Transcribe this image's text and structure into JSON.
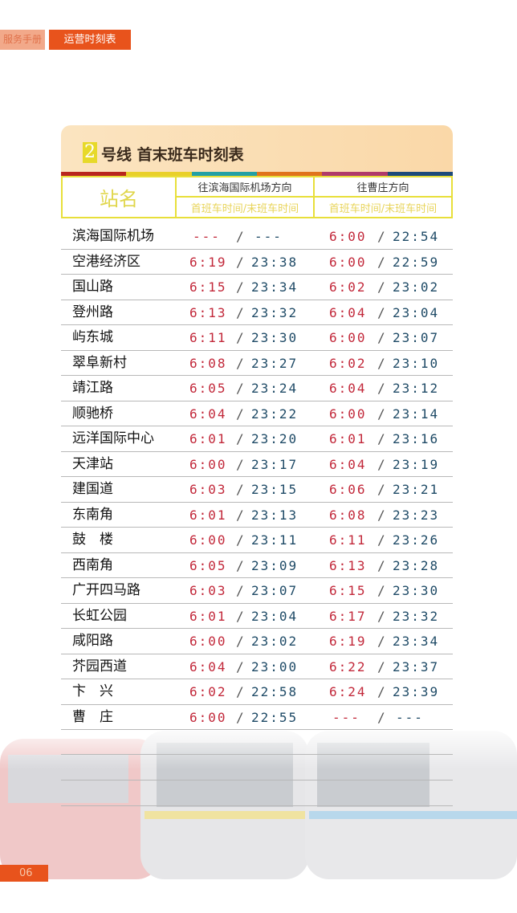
{
  "tabs": [
    "服务手册",
    "运营时刻表"
  ],
  "title": {
    "line_number": "2",
    "text": "号线  首末班车时刻表"
  },
  "stripe_colors": [
    "#b8261e",
    "#e9d02a",
    "#23a0a4",
    "#e0731c",
    "#b03a6a",
    "#1d4a7a"
  ],
  "header": {
    "station": "站名",
    "dir1": "往滨海国际机场方向",
    "dir2": "往曹庄方向",
    "sub": "首班车时间/末班车时间"
  },
  "rows": [
    {
      "name": "滨海国际机场",
      "a": "---",
      "b": "---",
      "c": "6:00",
      "d": "22:54"
    },
    {
      "name": "空港经济区",
      "a": "6:19",
      "b": "23:38",
      "c": "6:00",
      "d": "22:59"
    },
    {
      "name": "国山路",
      "a": "6:15",
      "b": "23:34",
      "c": "6:02",
      "d": "23:02"
    },
    {
      "name": "登州路",
      "a": "6:13",
      "b": "23:32",
      "c": "6:04",
      "d": "23:04"
    },
    {
      "name": "屿东城",
      "a": "6:11",
      "b": "23:30",
      "c": "6:00",
      "d": "23:07"
    },
    {
      "name": "翠阜新村",
      "a": "6:08",
      "b": "23:27",
      "c": "6:02",
      "d": "23:10"
    },
    {
      "name": "靖江路",
      "a": "6:05",
      "b": "23:24",
      "c": "6:04",
      "d": "23:12"
    },
    {
      "name": "顺驰桥",
      "a": "6:04",
      "b": "23:22",
      "c": "6:00",
      "d": "23:14"
    },
    {
      "name": "远洋国际中心",
      "a": "6:01",
      "b": "23:20",
      "c": "6:01",
      "d": "23:16"
    },
    {
      "name": "天津站",
      "a": "6:00",
      "b": "23:17",
      "c": "6:04",
      "d": "23:19"
    },
    {
      "name": "建国道",
      "a": "6:03",
      "b": "23:15",
      "c": "6:06",
      "d": "23:21"
    },
    {
      "name": "东南角",
      "a": "6:01",
      "b": "23:13",
      "c": "6:08",
      "d": "23:23"
    },
    {
      "name": "鼓　楼",
      "a": "6:00",
      "b": "23:11",
      "c": "6:11",
      "d": "23:26"
    },
    {
      "name": "西南角",
      "a": "6:05",
      "b": "23:09",
      "c": "6:13",
      "d": "23:28"
    },
    {
      "name": "广开四马路",
      "a": "6:03",
      "b": "23:07",
      "c": "6:15",
      "d": "23:30"
    },
    {
      "name": "长虹公园",
      "a": "6:01",
      "b": "23:04",
      "c": "6:17",
      "d": "23:32"
    },
    {
      "name": "咸阳路",
      "a": "6:00",
      "b": "23:02",
      "c": "6:19",
      "d": "23:34"
    },
    {
      "name": "芥园西道",
      "a": "6:04",
      "b": "23:00",
      "c": "6:22",
      "d": "23:37"
    },
    {
      "name": "卞　兴",
      "a": "6:02",
      "b": "22:58",
      "c": "6:24",
      "d": "23:39"
    },
    {
      "name": "曹　庄",
      "a": "6:00",
      "b": "22:55",
      "c": "---",
      "d": "---"
    }
  ],
  "separator": "/",
  "page_number": "06"
}
